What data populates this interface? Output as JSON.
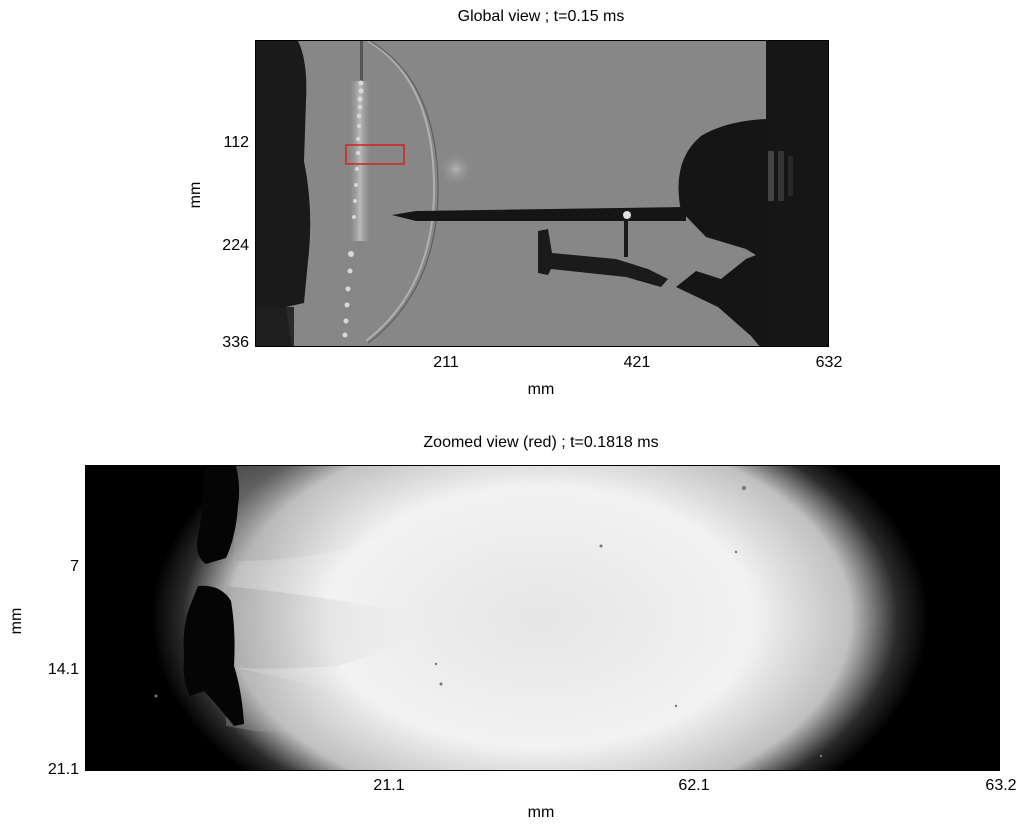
{
  "top_panel": {
    "title": "Global view ; t=0.15 ms",
    "x_ticks": [
      "211",
      "421",
      "632"
    ],
    "y_ticks": [
      "112",
      "224",
      "336"
    ],
    "xlabel": "mm",
    "ylabel": "mm",
    "roi_color": "#d42020"
  },
  "bottom_panel": {
    "title": "Zoomed view (red) ; t=0.1818 ms",
    "x_ticks": [
      "21.1",
      "62.1",
      "63.2"
    ],
    "y_ticks": [
      "7",
      "14.1",
      "21.1"
    ],
    "xlabel": "mm",
    "ylabel": "mm"
  }
}
